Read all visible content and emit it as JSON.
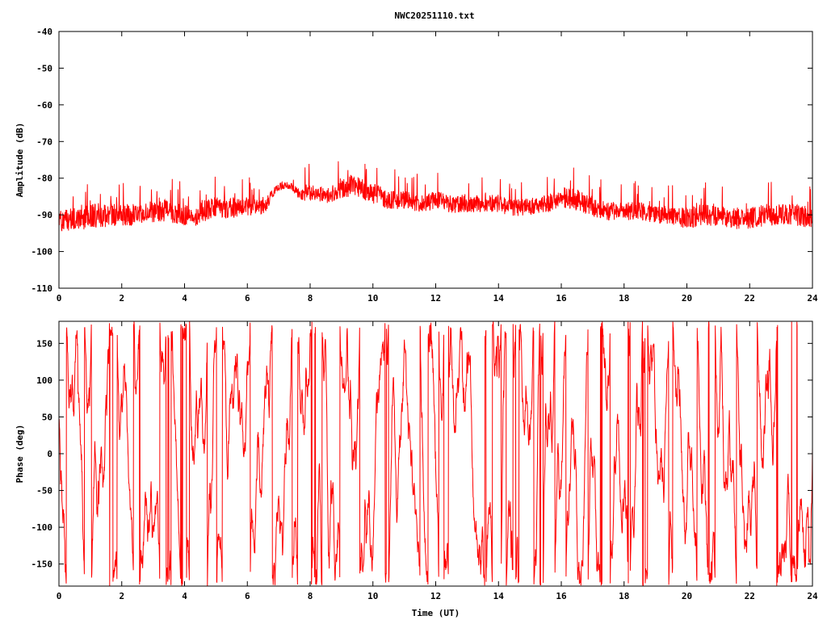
{
  "figure": {
    "title": "NWC20251110.txt"
  },
  "colors": {
    "trace": "#ff0000",
    "axes": "#000000",
    "grid": "#a0a0a0",
    "background": "#ffffff"
  },
  "chart_data": [
    {
      "type": "line",
      "title": "NWC20251110.txt",
      "xlabel": "",
      "ylabel": "Amplitude (dB)",
      "xlim": [
        0,
        24
      ],
      "ylim": [
        -110,
        -40
      ],
      "xticks": [
        0,
        2,
        4,
        6,
        8,
        10,
        12,
        14,
        16,
        18,
        20,
        22,
        24
      ],
      "yticks": [
        -110,
        -100,
        -90,
        -80,
        -70,
        -60,
        -50,
        -40
      ],
      "x_tick_labels": [
        "0",
        "2",
        "4",
        "6",
        "8",
        "10",
        "12",
        "14",
        "16",
        "18",
        "20",
        "22",
        "24"
      ],
      "y_tick_labels": [
        "-110",
        "-100",
        "-90",
        "-80",
        "-70",
        "-60",
        "-50",
        "-40"
      ],
      "grid": false,
      "series": [
        {
          "color": "#ff0000",
          "band": "noisy trace, approx center (x in UT hours, y in dB) with noise spread",
          "x": [
            0,
            0.5,
            1,
            1.5,
            2,
            2.5,
            3,
            3.5,
            4,
            4.3,
            4.6,
            5,
            5.5,
            6,
            6.5,
            6.7,
            6.9,
            7.1,
            7.4,
            7.7,
            7.9,
            8.2,
            8.5,
            9,
            9.3,
            9.7,
            10,
            10.5,
            11,
            11.5,
            12,
            12.5,
            13,
            13.5,
            14,
            14.5,
            15,
            15.5,
            16,
            16.5,
            17,
            17.5,
            18,
            18.5,
            19,
            19.5,
            20,
            20.5,
            21,
            21.5,
            22,
            22.5,
            23,
            23.5,
            24
          ],
          "center": [
            -92,
            -91,
            -90.5,
            -90,
            -90,
            -90,
            -89,
            -89,
            -90,
            -91,
            -89,
            -88,
            -88,
            -88,
            -88,
            -86,
            -83,
            -82,
            -82,
            -85,
            -84,
            -84,
            -85,
            -83,
            -82,
            -83,
            -84,
            -86,
            -86,
            -87,
            -86,
            -87,
            -87,
            -87,
            -87,
            -88,
            -88,
            -87,
            -85,
            -86,
            -88,
            -89,
            -89,
            -89,
            -90,
            -90,
            -91,
            -90,
            -90,
            -91,
            -91,
            -90,
            -90,
            -90,
            -91
          ],
          "spread": [
            3,
            3,
            3.5,
            3.5,
            3,
            3,
            3,
            3,
            3,
            2.5,
            3,
            3,
            3,
            2.5,
            2,
            2,
            1,
            1,
            1,
            1.5,
            2,
            2,
            2,
            2.5,
            3,
            3,
            3,
            2.5,
            2.5,
            2.5,
            2.5,
            2.5,
            2.5,
            2.5,
            2.5,
            2.5,
            2.5,
            2.5,
            3,
            3,
            2.5,
            2.5,
            2.5,
            2.5,
            2.5,
            2.5,
            3,
            3,
            3,
            3,
            3,
            3,
            3,
            3,
            3
          ]
        }
      ]
    },
    {
      "type": "line",
      "title": "",
      "xlabel": "Time (UT)",
      "ylabel": "Phase (deg)",
      "xlim": [
        0,
        24
      ],
      "ylim": [
        -180,
        180
      ],
      "xticks": [
        0,
        2,
        4,
        6,
        8,
        10,
        12,
        14,
        16,
        18,
        20,
        22,
        24
      ],
      "yticks": [
        -150,
        -100,
        -50,
        0,
        50,
        100,
        150
      ],
      "x_tick_labels": [
        "0",
        "2",
        "4",
        "6",
        "8",
        "10",
        "12",
        "14",
        "16",
        "18",
        "20",
        "22",
        "24"
      ],
      "y_tick_labels": [
        "-150",
        "-100",
        "-50",
        "0",
        "50",
        "100",
        "150"
      ],
      "grid": false,
      "series": [
        {
          "color": "#ff0000",
          "behaviour": "phase wrapping rapidly between -180 and 180 deg across the full day",
          "range": [
            -180,
            180
          ]
        }
      ]
    }
  ]
}
